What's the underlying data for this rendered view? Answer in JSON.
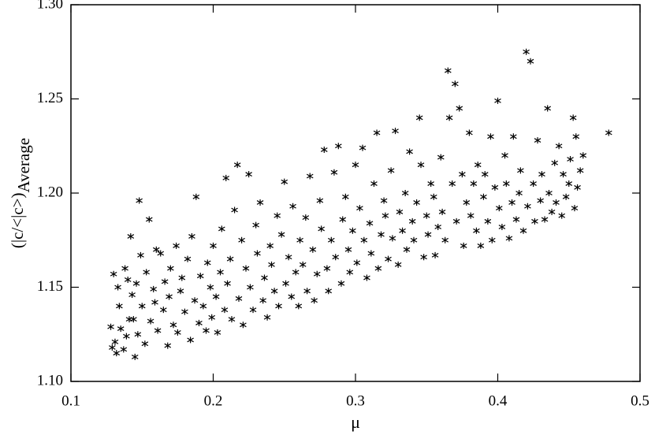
{
  "chart_data": {
    "type": "scatter",
    "xlabel": "μ",
    "ylabel": "(|c/<|c>)",
    "ylabel_subscript": "Average",
    "xlim": [
      0.1,
      0.5
    ],
    "ylim": [
      1.1,
      1.3
    ],
    "xticks": [
      0.1,
      0.2,
      0.3,
      0.4,
      0.5
    ],
    "yticks": [
      {
        "value": 1.1,
        "label": "1.10"
      },
      {
        "value": 1.15,
        "label": "1.15"
      },
      {
        "value": 1.2,
        "label": "1.20"
      },
      {
        "value": 1.25,
        "label": "1.25"
      },
      {
        "value": 1.3,
        "label": "1.30"
      }
    ],
    "series": [
      {
        "color": "#000000",
        "x": [
          0.128,
          0.129,
          0.13,
          0.131,
          0.132,
          0.133,
          0.134,
          0.135,
          0.137,
          0.138,
          0.139,
          0.14,
          0.141,
          0.142,
          0.143,
          0.144,
          0.145,
          0.146,
          0.147,
          0.148,
          0.149,
          0.15,
          0.152,
          0.153,
          0.155,
          0.156,
          0.158,
          0.159,
          0.16,
          0.161,
          0.163,
          0.165,
          0.166,
          0.168,
          0.169,
          0.17,
          0.172,
          0.174,
          0.175,
          0.177,
          0.178,
          0.18,
          0.182,
          0.184,
          0.185,
          0.187,
          0.188,
          0.19,
          0.191,
          0.193,
          0.195,
          0.196,
          0.198,
          0.199,
          0.2,
          0.202,
          0.203,
          0.205,
          0.206,
          0.208,
          0.209,
          0.21,
          0.212,
          0.213,
          0.215,
          0.217,
          0.218,
          0.22,
          0.221,
          0.223,
          0.225,
          0.226,
          0.228,
          0.23,
          0.231,
          0.233,
          0.235,
          0.236,
          0.238,
          0.24,
          0.241,
          0.243,
          0.245,
          0.246,
          0.248,
          0.25,
          0.251,
          0.253,
          0.255,
          0.256,
          0.258,
          0.26,
          0.261,
          0.263,
          0.265,
          0.266,
          0.268,
          0.27,
          0.271,
          0.273,
          0.275,
          0.276,
          0.278,
          0.28,
          0.281,
          0.283,
          0.285,
          0.286,
          0.288,
          0.29,
          0.291,
          0.293,
          0.295,
          0.296,
          0.298,
          0.3,
          0.301,
          0.303,
          0.305,
          0.306,
          0.308,
          0.31,
          0.311,
          0.313,
          0.315,
          0.316,
          0.318,
          0.32,
          0.321,
          0.323,
          0.325,
          0.326,
          0.328,
          0.33,
          0.331,
          0.333,
          0.335,
          0.336,
          0.338,
          0.34,
          0.341,
          0.343,
          0.345,
          0.346,
          0.348,
          0.35,
          0.351,
          0.353,
          0.355,
          0.356,
          0.358,
          0.36,
          0.361,
          0.363,
          0.365,
          0.366,
          0.368,
          0.37,
          0.371,
          0.373,
          0.375,
          0.376,
          0.378,
          0.38,
          0.381,
          0.383,
          0.385,
          0.386,
          0.388,
          0.39,
          0.391,
          0.393,
          0.395,
          0.396,
          0.398,
          0.4,
          0.401,
          0.403,
          0.405,
          0.406,
          0.408,
          0.41,
          0.411,
          0.413,
          0.415,
          0.416,
          0.418,
          0.42,
          0.421,
          0.423,
          0.425,
          0.426,
          0.428,
          0.43,
          0.431,
          0.433,
          0.435,
          0.436,
          0.438,
          0.44,
          0.441,
          0.443,
          0.445,
          0.446,
          0.448,
          0.45,
          0.451,
          0.453,
          0.454,
          0.455,
          0.456,
          0.458,
          0.46,
          0.478
        ],
        "values": [
          1.129,
          1.118,
          1.157,
          1.121,
          1.115,
          1.15,
          1.14,
          1.128,
          1.117,
          1.16,
          1.124,
          1.154,
          1.133,
          1.177,
          1.146,
          1.133,
          1.113,
          1.152,
          1.125,
          1.196,
          1.167,
          1.14,
          1.12,
          1.158,
          1.186,
          1.132,
          1.149,
          1.142,
          1.17,
          1.127,
          1.168,
          1.138,
          1.153,
          1.119,
          1.145,
          1.16,
          1.13,
          1.172,
          1.126,
          1.148,
          1.155,
          1.137,
          1.165,
          1.122,
          1.177,
          1.143,
          1.198,
          1.131,
          1.156,
          1.14,
          1.127,
          1.163,
          1.15,
          1.134,
          1.172,
          1.145,
          1.126,
          1.158,
          1.181,
          1.138,
          1.208,
          1.152,
          1.165,
          1.133,
          1.191,
          1.215,
          1.144,
          1.175,
          1.13,
          1.16,
          1.21,
          1.15,
          1.138,
          1.183,
          1.168,
          1.195,
          1.143,
          1.155,
          1.134,
          1.172,
          1.162,
          1.148,
          1.188,
          1.14,
          1.178,
          1.206,
          1.152,
          1.166,
          1.145,
          1.193,
          1.158,
          1.14,
          1.175,
          1.162,
          1.187,
          1.148,
          1.209,
          1.17,
          1.143,
          1.157,
          1.196,
          1.181,
          1.223,
          1.16,
          1.148,
          1.175,
          1.211,
          1.166,
          1.225,
          1.152,
          1.186,
          1.198,
          1.17,
          1.158,
          1.18,
          1.215,
          1.163,
          1.192,
          1.224,
          1.175,
          1.155,
          1.184,
          1.168,
          1.205,
          1.232,
          1.16,
          1.178,
          1.196,
          1.188,
          1.165,
          1.212,
          1.176,
          1.233,
          1.162,
          1.19,
          1.18,
          1.2,
          1.17,
          1.222,
          1.185,
          1.175,
          1.195,
          1.24,
          1.215,
          1.166,
          1.188,
          1.178,
          1.205,
          1.198,
          1.167,
          1.182,
          1.219,
          1.19,
          1.175,
          1.265,
          1.24,
          1.205,
          1.258,
          1.185,
          1.245,
          1.21,
          1.172,
          1.195,
          1.232,
          1.188,
          1.205,
          1.18,
          1.215,
          1.172,
          1.198,
          1.21,
          1.185,
          1.23,
          1.175,
          1.203,
          1.249,
          1.192,
          1.182,
          1.22,
          1.205,
          1.176,
          1.195,
          1.23,
          1.186,
          1.2,
          1.212,
          1.18,
          1.275,
          1.193,
          1.27,
          1.205,
          1.185,
          1.228,
          1.196,
          1.21,
          1.186,
          1.245,
          1.2,
          1.19,
          1.216,
          1.195,
          1.225,
          1.188,
          1.21,
          1.198,
          1.205,
          1.218,
          1.24,
          1.192,
          1.23,
          1.203,
          1.212,
          1.22,
          1.232
        ]
      }
    ]
  }
}
